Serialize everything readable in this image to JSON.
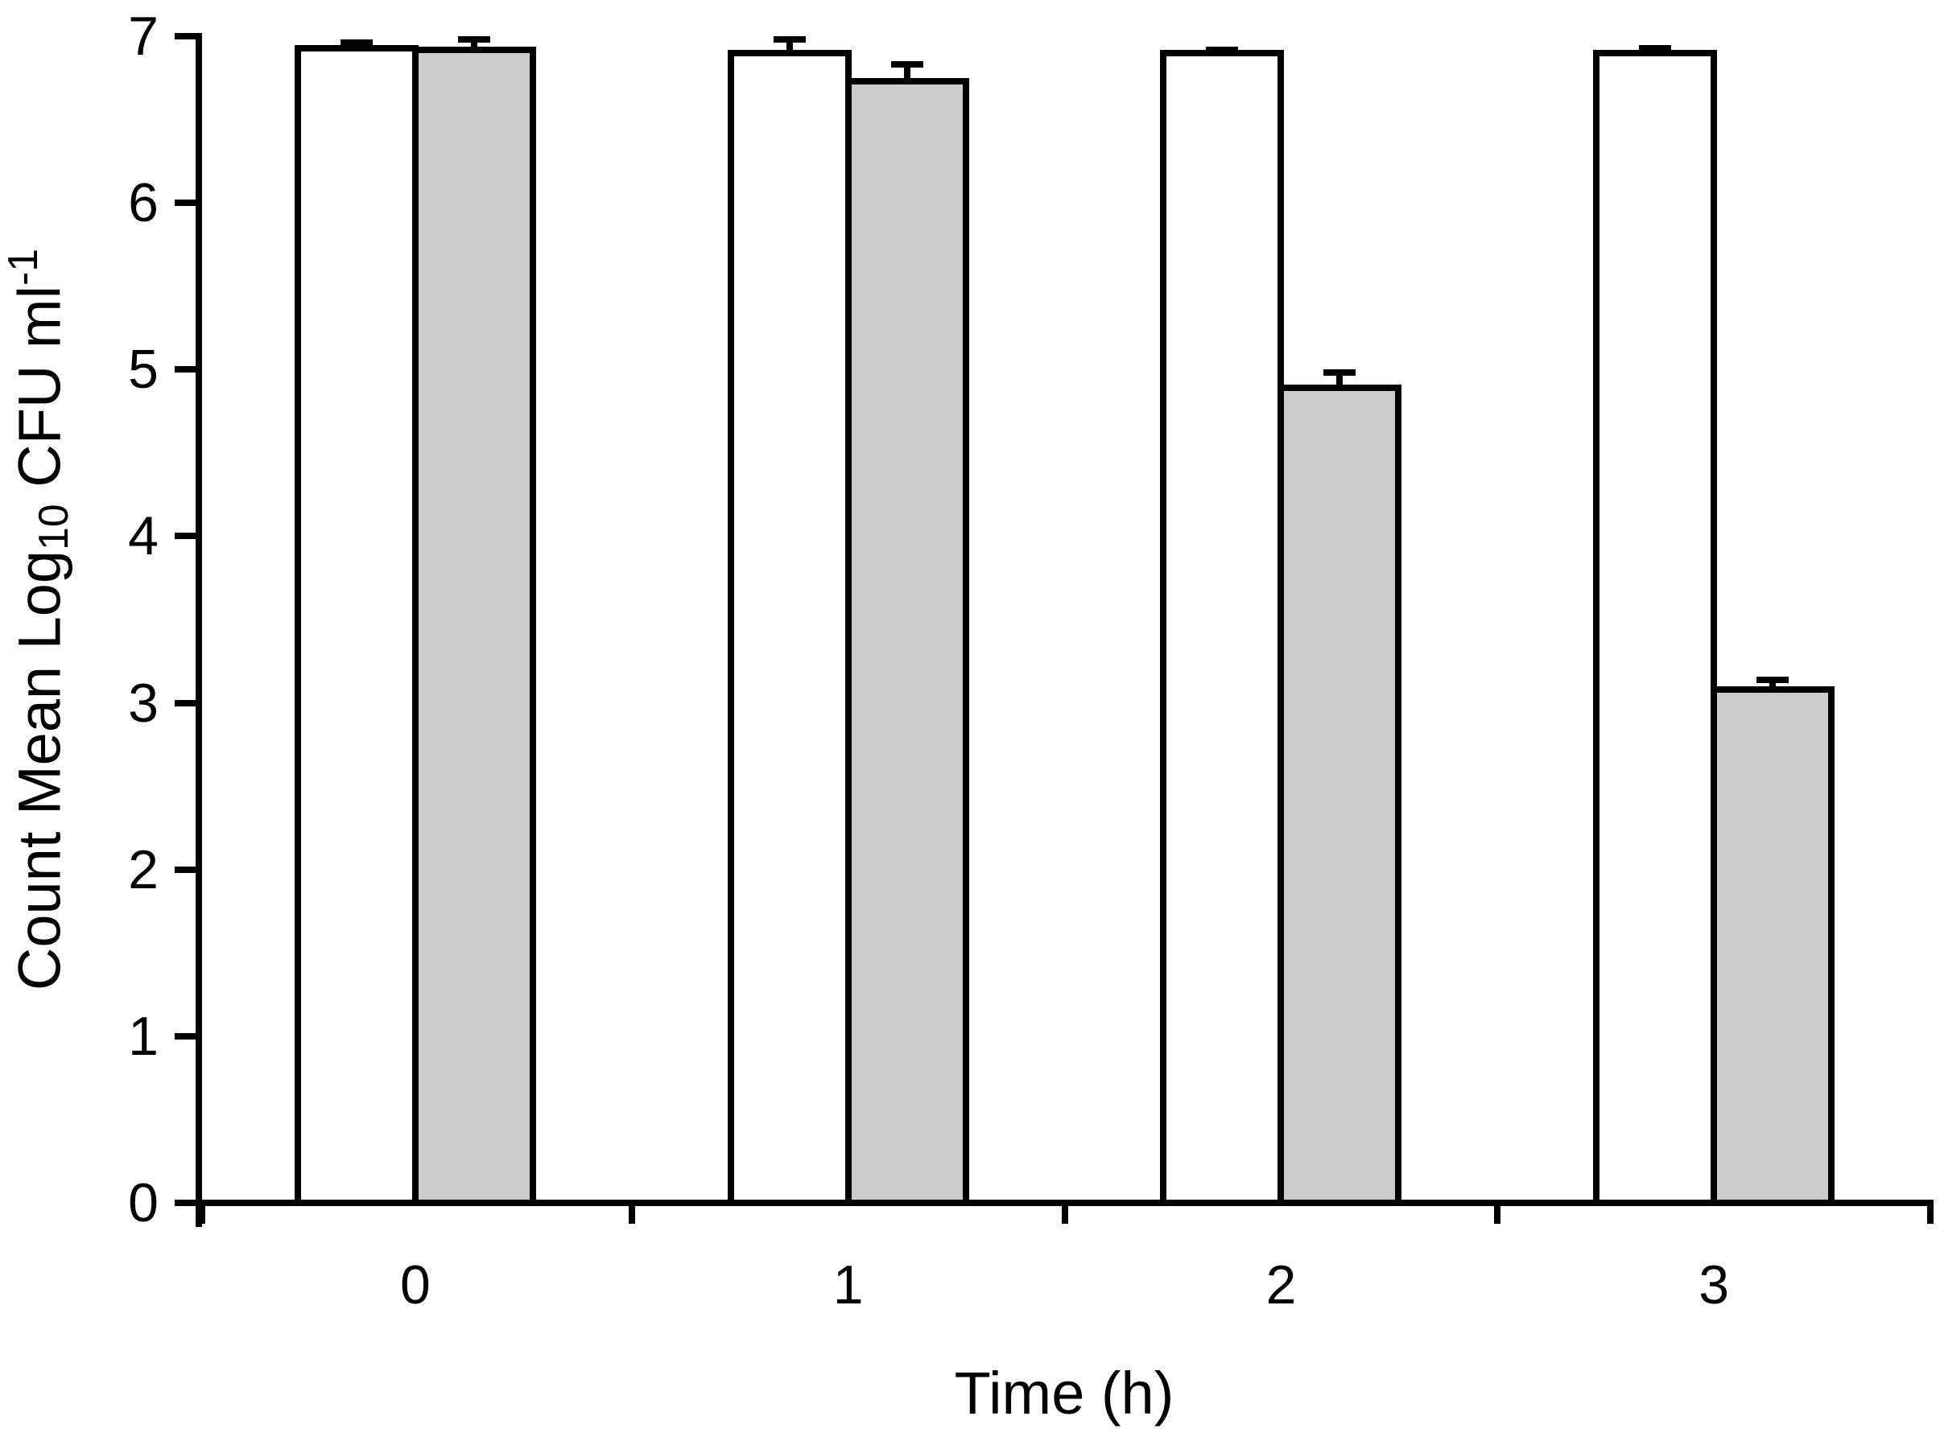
{
  "chart_data": {
    "type": "bar",
    "title": "",
    "xlabel": "Time (h)",
    "ylabel": "Count Mean Log10 CFU ml-1",
    "ylabel_parts": {
      "prefix": "Count Mean Log",
      "sub": "10",
      "mid": " CFU ml",
      "sup": "-1"
    },
    "categories": [
      "0",
      "1",
      "2",
      "3"
    ],
    "series": [
      {
        "name": "white",
        "fill": "#FFFFFF",
        "values": [
          6.93,
          6.9,
          6.9,
          6.9
        ],
        "errors": [
          0.03,
          0.08,
          0.02,
          0.03
        ]
      },
      {
        "name": "gray",
        "fill": "#CCCCCC",
        "values": [
          6.92,
          6.73,
          4.89,
          3.08
        ],
        "errors": [
          0.06,
          0.1,
          0.09,
          0.06
        ]
      }
    ],
    "ylim": [
      0,
      7
    ],
    "yticks": [
      0,
      1,
      2,
      3,
      4,
      5,
      6,
      7
    ],
    "grid": false,
    "legend": null,
    "bar_border_color": "#000000",
    "axis_color": "#000000"
  }
}
